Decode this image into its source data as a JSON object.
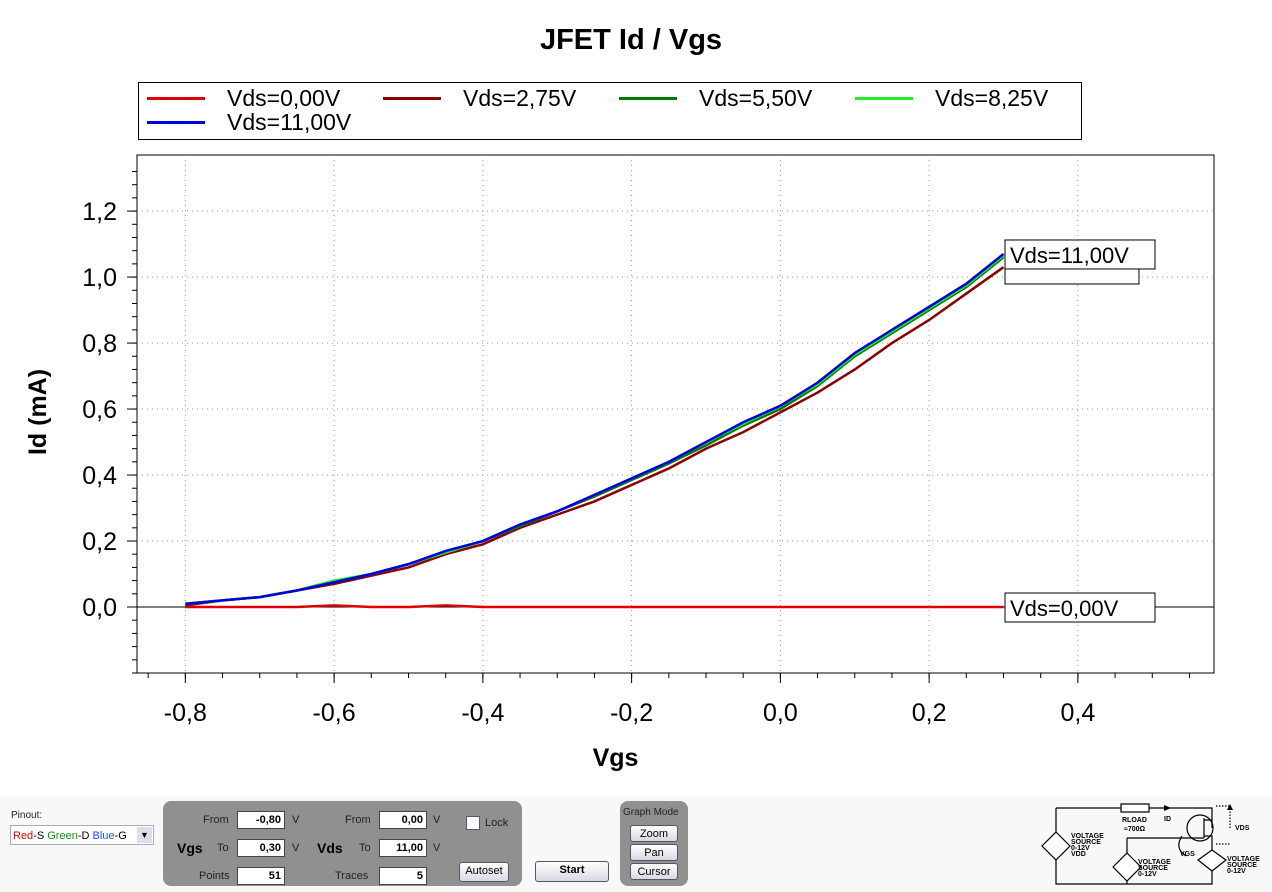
{
  "title": "JFET Id / Vgs",
  "chart_data": {
    "type": "line",
    "title": "JFET Id / Vgs",
    "xlabel": "Vgs",
    "ylabel": "Id (mA)",
    "xlim": [
      -0.865,
      0.583
    ],
    "ylim": [
      -0.2,
      1.37
    ],
    "xticks": [
      "-0,8",
      "-0,6",
      "-0,4",
      "-0,2",
      "0,0",
      "0,2",
      "0,4"
    ],
    "xtick_values": [
      -0.8,
      -0.6,
      -0.4,
      -0.2,
      0,
      0.2,
      0.4
    ],
    "yticks": [
      "0,0",
      "0,2",
      "0,4",
      "0,6",
      "0,8",
      "1,0",
      "1,2"
    ],
    "ytick_values": [
      0,
      0.2,
      0.4,
      0.6,
      0.8,
      1.0,
      1.2
    ],
    "grid": true,
    "legend": "top",
    "x": [
      -0.8,
      -0.75,
      -0.7,
      -0.65,
      -0.6,
      -0.55,
      -0.5,
      -0.45,
      -0.4,
      -0.35,
      -0.3,
      -0.25,
      -0.2,
      -0.15,
      -0.1,
      -0.05,
      0,
      0.05,
      0.1,
      0.15,
      0.2,
      0.25,
      0.3
    ],
    "series": [
      {
        "name": "Vds=0,00V",
        "color": "#e00000",
        "values": [
          0,
          0,
          0,
          0,
          0.005,
          0,
          0,
          0.005,
          0,
          0,
          0,
          0,
          0,
          0,
          0,
          0,
          0,
          0,
          0,
          0,
          0,
          0,
          0
        ]
      },
      {
        "name": "Vds=2,75V",
        "color": "#8b0000",
        "values": [
          0.005,
          0.02,
          0.03,
          0.05,
          0.07,
          0.095,
          0.12,
          0.16,
          0.19,
          0.24,
          0.28,
          0.32,
          0.37,
          0.42,
          0.48,
          0.53,
          0.59,
          0.65,
          0.72,
          0.8,
          0.87,
          0.95,
          1.03
        ]
      },
      {
        "name": "Vds=5,50V",
        "color": "#007a00",
        "values": [
          0.01,
          0.02,
          0.03,
          0.05,
          0.075,
          0.1,
          0.13,
          0.165,
          0.2,
          0.245,
          0.29,
          0.335,
          0.385,
          0.435,
          0.49,
          0.55,
          0.6,
          0.67,
          0.76,
          0.83,
          0.9,
          0.97,
          1.06
        ]
      },
      {
        "name": "Vds=8,25V",
        "color": "#22ee22",
        "values": [
          0.01,
          0.02,
          0.03,
          0.05,
          0.08,
          0.1,
          0.13,
          0.165,
          0.2,
          0.25,
          0.29,
          0.34,
          0.39,
          0.44,
          0.5,
          0.555,
          0.61,
          0.675,
          0.765,
          0.835,
          0.905,
          0.975,
          1.065
        ]
      },
      {
        "name": "Vds=11,00V",
        "color": "#0000dd",
        "values": [
          0.01,
          0.02,
          0.03,
          0.05,
          0.075,
          0.1,
          0.13,
          0.17,
          0.2,
          0.25,
          0.29,
          0.34,
          0.39,
          0.44,
          0.5,
          0.56,
          0.61,
          0.68,
          0.77,
          0.84,
          0.91,
          0.98,
          1.07
        ]
      }
    ],
    "end_labels": [
      "Vds=11,00V",
      "Vds=0,00V"
    ]
  },
  "controls": {
    "pinout_label": "Pinout:",
    "pinout": [
      {
        "t": "Red",
        "c": "#e00000"
      },
      {
        "t": "-S ",
        "c": "#000"
      },
      {
        "t": "Green",
        "c": "#109010"
      },
      {
        "t": "-D ",
        "c": "#000"
      },
      {
        "t": "Blue",
        "c": "#2050e0"
      },
      {
        "t": "-G",
        "c": "#000"
      }
    ],
    "vgs": "Vgs",
    "vds": "Vds",
    "from": "From",
    "to": "To",
    "v": "V",
    "vgs_from": "-0,80",
    "vgs_to": "0,30",
    "points_label": "Points",
    "points": "51",
    "vds_from": "0,00",
    "vds_to": "11,00",
    "traces_label": "Traces",
    "traces": "5",
    "lock": "Lock",
    "autoset": "Autoset",
    "start": "Start",
    "graph_mode": "Graph Mode",
    "zoom": "Zoom",
    "pan": "Pan",
    "cursor": "Cursor"
  },
  "circuit": {
    "rload": "RLOAD",
    "rval": "≈700Ω",
    "id": "ID",
    "vds": "VDS",
    "vgs": "VGS",
    "src1": [
      "VOLTAGE",
      "SOURCE",
      "0-12V",
      "VDD"
    ],
    "src2": [
      "VOLTAGE",
      "SOURCE",
      "0-12V"
    ],
    "src3": [
      "VOLTAGE",
      "SOURCE",
      "0-12V"
    ]
  }
}
